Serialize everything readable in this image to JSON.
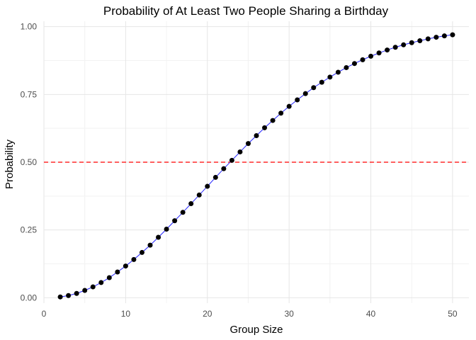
{
  "chart_data": {
    "type": "line",
    "title": "Probability of At Least Two People Sharing a Birthday",
    "xlabel": "Group Size",
    "ylabel": "Probability",
    "xlim": [
      0,
      52
    ],
    "ylim": [
      -0.02,
      1.02
    ],
    "x_ticks": [
      0,
      10,
      20,
      30,
      40,
      50
    ],
    "y_ticks": [
      0.0,
      0.25,
      0.5,
      0.75,
      1.0
    ],
    "x_tick_labels": [
      "0",
      "10",
      "20",
      "30",
      "40",
      "50"
    ],
    "y_tick_labels": [
      "0.00",
      "0.25",
      "0.50",
      "0.75",
      "1.00"
    ],
    "grid": true,
    "reference_line": {
      "y": 0.5,
      "style": "dashed",
      "color": "#ff2a2a"
    },
    "line_color": "#2222ff",
    "point_color": "#000000",
    "series": [
      {
        "x": [
          2,
          3,
          4,
          5,
          6,
          7,
          8,
          9,
          10,
          11,
          12,
          13,
          14,
          15,
          16,
          17,
          18,
          19,
          20,
          21,
          22,
          23,
          24,
          25,
          26,
          27,
          28,
          29,
          30,
          31,
          32,
          33,
          34,
          35,
          36,
          37,
          38,
          39,
          40,
          41,
          42,
          43,
          44,
          45,
          46,
          47,
          48,
          49,
          50
        ],
        "values": [
          0.003,
          0.008,
          0.016,
          0.027,
          0.04,
          0.056,
          0.074,
          0.095,
          0.117,
          0.141,
          0.167,
          0.194,
          0.223,
          0.253,
          0.284,
          0.315,
          0.347,
          0.379,
          0.411,
          0.444,
          0.476,
          0.507,
          0.538,
          0.569,
          0.598,
          0.627,
          0.654,
          0.681,
          0.706,
          0.73,
          0.753,
          0.775,
          0.795,
          0.814,
          0.832,
          0.849,
          0.864,
          0.878,
          0.891,
          0.903,
          0.914,
          0.924,
          0.933,
          0.941,
          0.948,
          0.955,
          0.961,
          0.966,
          0.97
        ]
      }
    ]
  }
}
